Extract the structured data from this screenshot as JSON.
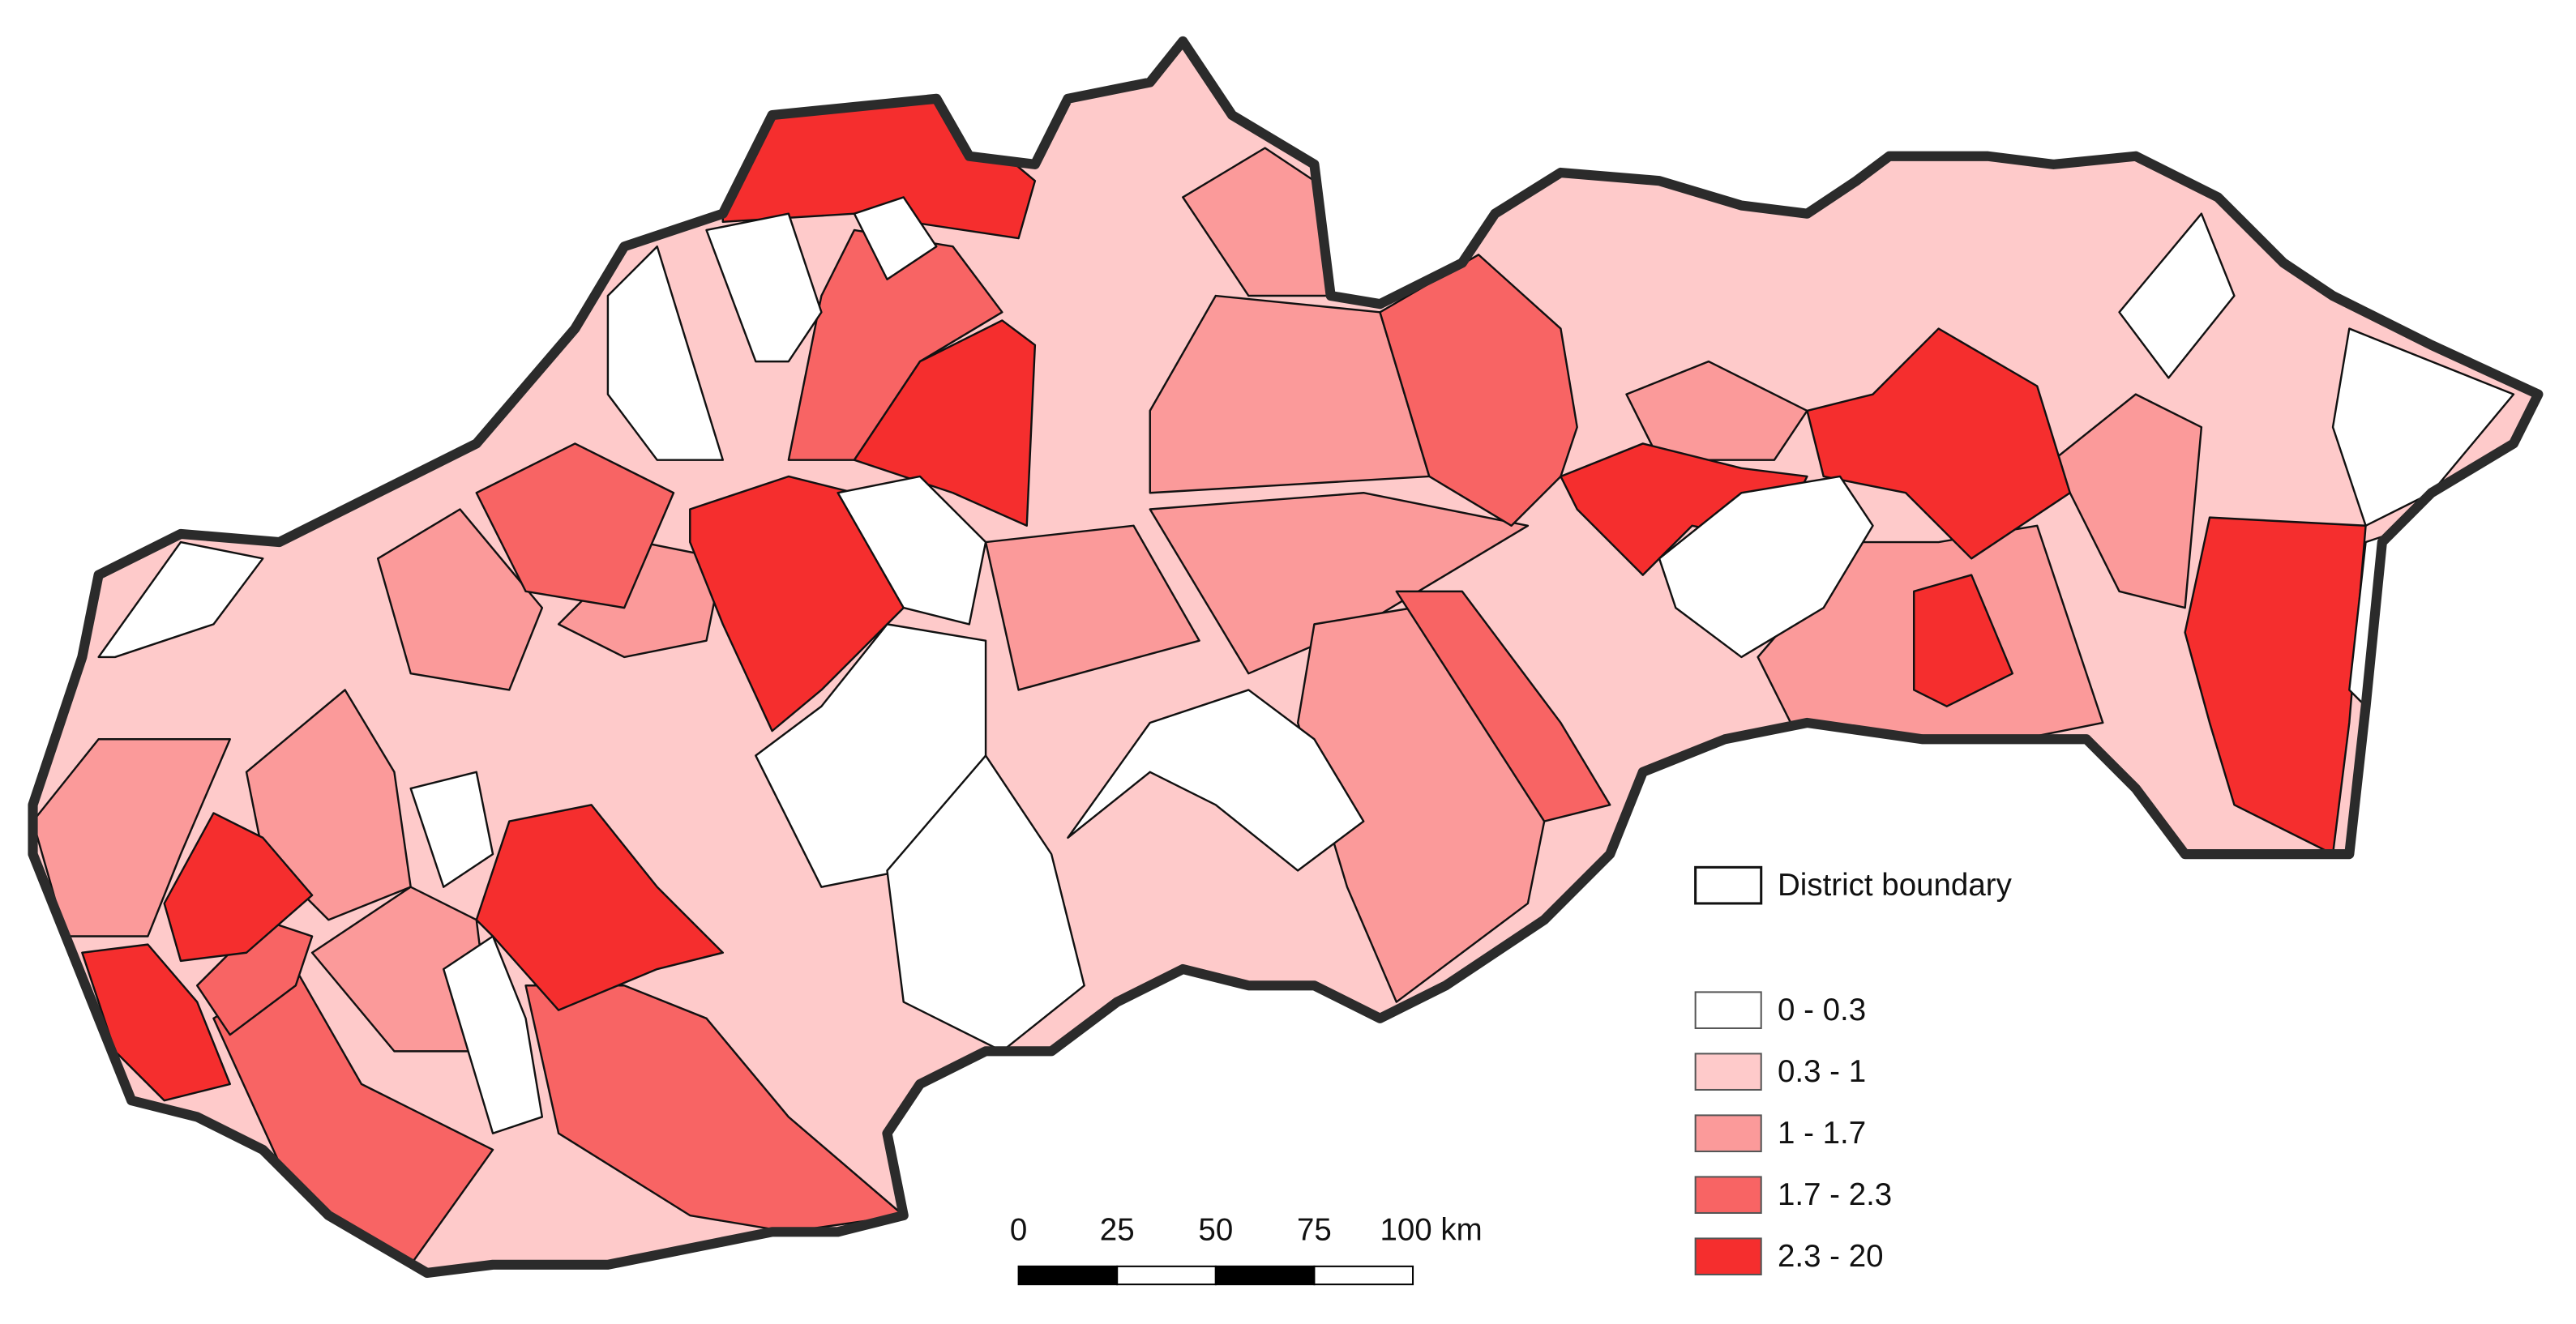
{
  "legend": {
    "boundary": "District boundary",
    "classes": [
      {
        "label": "0 - 0.3",
        "color": "#ffffff"
      },
      {
        "label": "0.3 - 1",
        "color": "#fecaca"
      },
      {
        "label": "1 - 1.7",
        "color": "#fb9a9a"
      },
      {
        "label": "1.7 - 2.3",
        "color": "#f86464"
      },
      {
        "label": "2.3 - 20",
        "color": "#f52e2e"
      }
    ]
  },
  "scale_bar": {
    "ticks": [
      "0",
      "25",
      "50",
      "75",
      "100 km"
    ]
  }
}
